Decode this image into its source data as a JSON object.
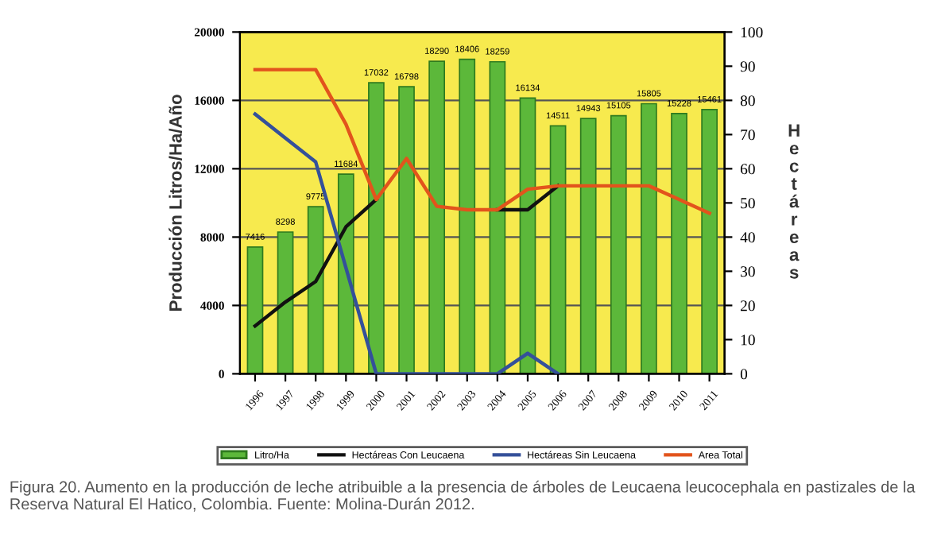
{
  "chart_data": {
    "type": "bar",
    "categories": [
      "1996",
      "1997",
      "1998",
      "1999",
      "2000",
      "2001",
      "2002",
      "2003",
      "2004",
      "2005",
      "2006",
      "2007",
      "2008",
      "2009",
      "2010",
      "2011"
    ],
    "ylabel": "Producción Litros/Ha/Año",
    "y2label": "Hectáreas",
    "ylim": [
      0,
      20000
    ],
    "yticks": [
      0,
      4000,
      8000,
      12000,
      16000,
      20000
    ],
    "y2lim": [
      0,
      100
    ],
    "y2ticks": [
      0,
      10,
      20,
      30,
      40,
      50,
      60,
      70,
      80,
      90,
      100
    ],
    "grid": "y",
    "legend": "bottom",
    "series": [
      {
        "name": "Litro/Ha",
        "color": "#5cb83a",
        "values": [
          7416,
          8298,
          9775,
          11684,
          17032,
          16798,
          18290,
          18406,
          18259,
          16134,
          14511,
          14943,
          15105,
          15805,
          15228,
          15461
        ],
        "value_labels": [
          "7416",
          "8298",
          "9775",
          "11684",
          "17032",
          "16798",
          "18290",
          "18406",
          "18259",
          "16134",
          "14511",
          "14943",
          "15105",
          "15805",
          "15228",
          "15461"
        ]
      },
      {
        "name": "Hectáreas Con Leucaena",
        "type": "line",
        "axis": "y2",
        "color": "#111111",
        "values": [
          14,
          21,
          27,
          43,
          51,
          null,
          null,
          null,
          48,
          48,
          55,
          null,
          null,
          null,
          null,
          null
        ]
      },
      {
        "name": "Hectáreas Sin Leucaena",
        "type": "line",
        "axis": "y2",
        "color": "#34509a",
        "values": [
          76,
          69,
          62,
          31,
          0,
          0,
          0,
          0,
          0,
          6,
          0,
          null,
          null,
          null,
          null,
          null
        ]
      },
      {
        "name": "Area Total",
        "type": "line",
        "axis": "y2",
        "color": "#e2541c",
        "values": [
          89,
          89,
          89,
          73,
          51,
          63,
          49,
          48,
          48,
          54,
          55,
          55,
          55,
          55,
          51,
          47
        ]
      }
    ],
    "annotations": [
      "Figura 20. Aumento en la producción de leche atribuible a la presencia de árboles de Leucaena leucocephala en pastizales de la Reserva Natural El Hatico, Colombia. Fuente: Molina-Durán 2012."
    ]
  }
}
